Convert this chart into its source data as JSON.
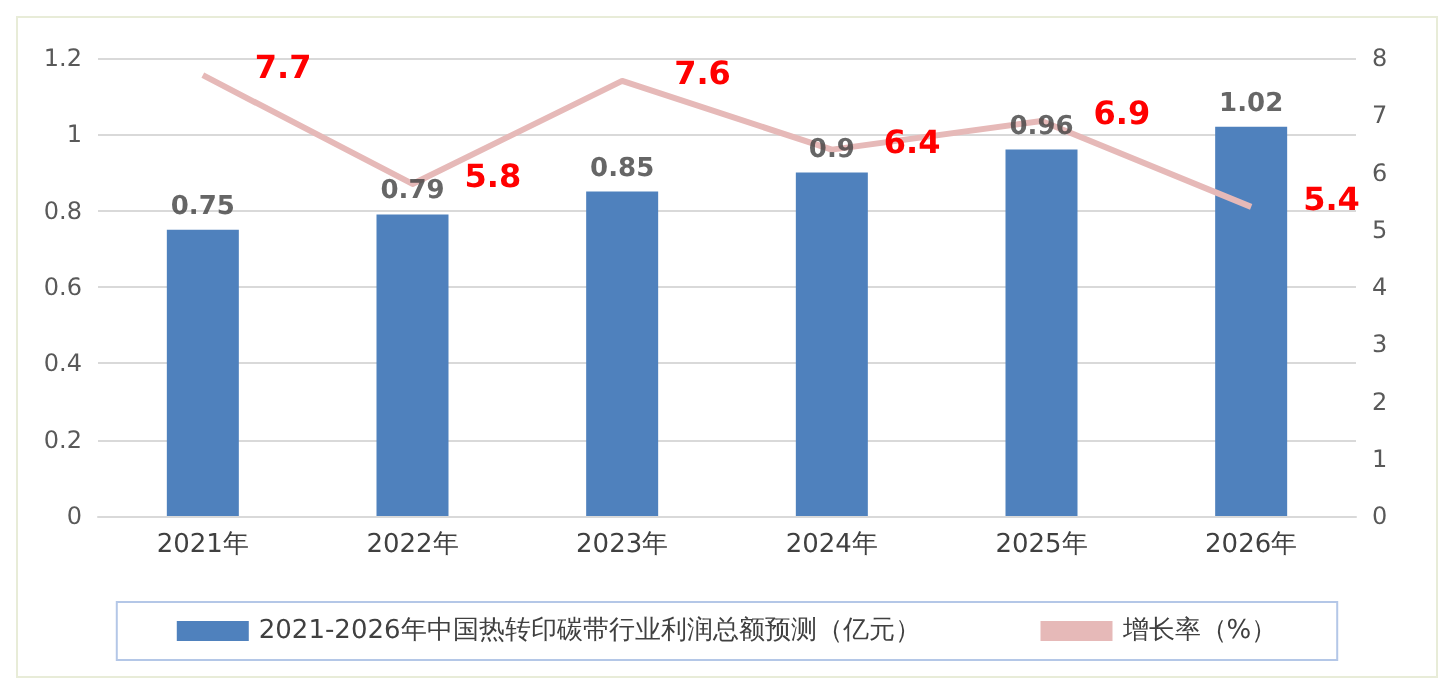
{
  "chart_data": {
    "type": "bar",
    "categories": [
      "2021年",
      "2022年",
      "2023年",
      "2024年",
      "2025年",
      "2026年"
    ],
    "series": [
      {
        "name": "2021-2026年中国热转印碳带行业利润总额预测（亿元）",
        "color": "#4f81bd",
        "values": [
          0.75,
          0.79,
          0.85,
          0.9,
          0.96,
          1.02
        ]
      },
      {
        "name": "增长率（%）",
        "type": "line",
        "axis": "y2",
        "color": "#e6b9b8",
        "values": [
          7.7,
          5.8,
          7.6,
          6.4,
          6.9,
          5.4
        ]
      }
    ],
    "ylim": [
      0,
      1.2
    ],
    "yticks": [
      0,
      0.2,
      0.4,
      0.6,
      0.8,
      1,
      1.2
    ],
    "y2lim": [
      0,
      8
    ],
    "y2ticks": [
      0,
      1,
      2,
      3,
      4,
      5,
      6,
      7,
      8
    ],
    "data_labels": true,
    "grid": "y",
    "legend": "bottom",
    "marker": "none"
  }
}
